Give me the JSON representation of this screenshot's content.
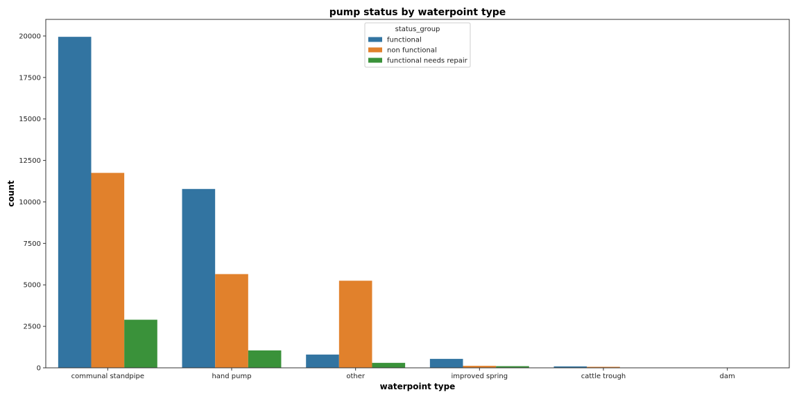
{
  "chart_data": {
    "type": "bar",
    "title": "pump status by waterpoint type",
    "xlabel": "waterpoint type",
    "ylabel": "count",
    "categories": [
      "communal standpipe",
      "hand pump",
      "other",
      "improved spring",
      "cattle trough",
      "dam"
    ],
    "ylim": [
      0,
      21000
    ],
    "yticks": [
      0,
      2500,
      5000,
      7500,
      10000,
      12500,
      15000,
      17500,
      20000
    ],
    "grid": false,
    "legend": {
      "title": "status_group",
      "position": "top-center"
    },
    "series": [
      {
        "name": "functional",
        "color": "#3274a1",
        "values": [
          19950,
          10780,
          800,
          540,
          85,
          5
        ]
      },
      {
        "name": "non functional",
        "color": "#e1812c",
        "values": [
          11750,
          5650,
          5250,
          120,
          60,
          0
        ]
      },
      {
        "name": "functional needs repair",
        "color": "#3a923a",
        "values": [
          2900,
          1050,
          300,
          100,
          15,
          0
        ]
      }
    ]
  }
}
